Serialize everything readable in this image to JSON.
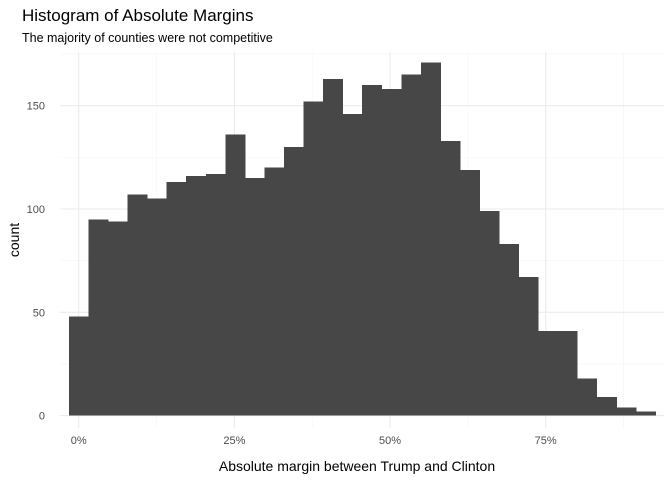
{
  "chart_data": {
    "type": "bar",
    "title": "Histogram of Absolute Margins",
    "subtitle": "The majority of counties were not competitive",
    "xlabel": "Absolute margin between Trump and Clinton",
    "ylabel": "count",
    "x_tick_labels": [
      "0%",
      "25%",
      "50%",
      "75%"
    ],
    "x_ticks": [
      0,
      0.25,
      0.5,
      0.75
    ],
    "y_ticks": [
      0,
      50,
      100,
      150
    ],
    "y_tick_labels": [
      "0",
      "50",
      "100",
      "150"
    ],
    "xlim": [
      -0.03,
      0.94
    ],
    "ylim": [
      -6,
      176
    ],
    "bin_width": 0.0314,
    "bins": [
      {
        "x": 0.0,
        "count": 48
      },
      {
        "x": 0.0314,
        "count": 95
      },
      {
        "x": 0.0628,
        "count": 94
      },
      {
        "x": 0.0942,
        "count": 107
      },
      {
        "x": 0.1256,
        "count": 105
      },
      {
        "x": 0.157,
        "count": 113
      },
      {
        "x": 0.1884,
        "count": 116
      },
      {
        "x": 0.2198,
        "count": 117
      },
      {
        "x": 0.2512,
        "count": 136
      },
      {
        "x": 0.2826,
        "count": 115
      },
      {
        "x": 0.314,
        "count": 120
      },
      {
        "x": 0.3454,
        "count": 130
      },
      {
        "x": 0.3768,
        "count": 152
      },
      {
        "x": 0.4082,
        "count": 163
      },
      {
        "x": 0.4396,
        "count": 146
      },
      {
        "x": 0.471,
        "count": 160
      },
      {
        "x": 0.5024,
        "count": 158
      },
      {
        "x": 0.5338,
        "count": 165
      },
      {
        "x": 0.5652,
        "count": 171
      },
      {
        "x": 0.5966,
        "count": 133
      },
      {
        "x": 0.628,
        "count": 119
      },
      {
        "x": 0.6594,
        "count": 99
      },
      {
        "x": 0.6908,
        "count": 83
      },
      {
        "x": 0.7222,
        "count": 67
      },
      {
        "x": 0.7536,
        "count": 41
      },
      {
        "x": 0.785,
        "count": 41
      },
      {
        "x": 0.8164,
        "count": 18
      },
      {
        "x": 0.8478,
        "count": 9
      },
      {
        "x": 0.8792,
        "count": 4
      },
      {
        "x": 0.9106,
        "count": 2
      }
    ],
    "grid": true,
    "legend": "none",
    "bar_color": "#474747",
    "grid_color": "#ebebeb"
  }
}
